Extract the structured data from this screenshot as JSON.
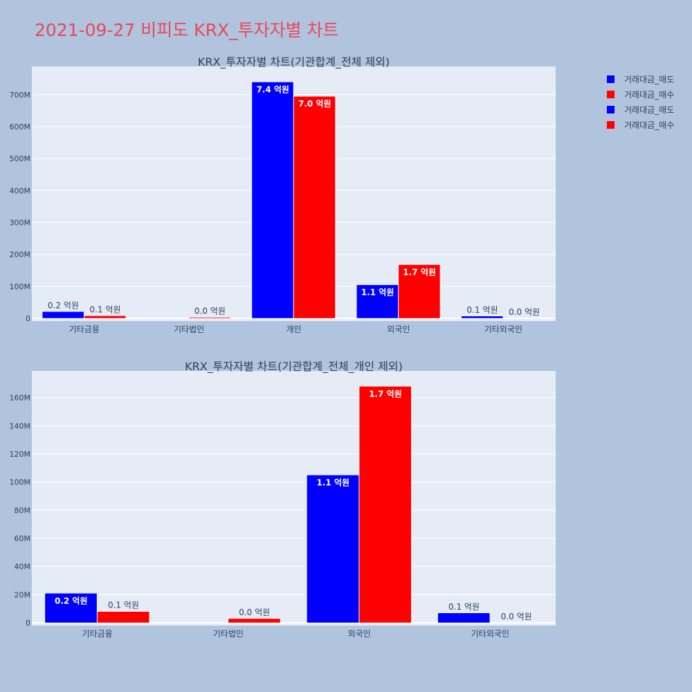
{
  "title": "2021-09-27 비피도 KRX_투자자별 차트",
  "colors": {
    "sell": "#0000ff",
    "buy": "#ff0000",
    "plot_bg": "#e5ecf6",
    "page_bg": "#b0c4de",
    "title": "#e8495a"
  },
  "legend": [
    {
      "name": "거래대금_매도",
      "color": "#0000ff"
    },
    {
      "name": "거래대금_매수",
      "color": "#ff0000"
    },
    {
      "name": "거래대금_매도",
      "color": "#0000ff"
    },
    {
      "name": "거래대금_매수",
      "color": "#ff0000"
    }
  ],
  "chart_data": [
    {
      "type": "bar",
      "title": "KRX_투자자별 차트(기관합계_전체 제외)",
      "categories": [
        "기타금융",
        "기타법인",
        "개인",
        "외국인",
        "기타외국인"
      ],
      "series": [
        {
          "name": "거래대금_매도",
          "values": [
            21000000,
            0,
            740000000,
            105000000,
            7000000
          ],
          "labels": [
            "0.2 억원",
            "",
            "7.4 억원",
            "1.1 억원",
            "0.1 억원"
          ]
        },
        {
          "name": "거래대금_매수",
          "values": [
            8000000,
            3000000,
            695000000,
            168000000,
            0
          ],
          "labels": [
            "0.1 억원",
            "0.0 억원",
            "7.0 억원",
            "1.7 억원",
            "0.0 억원"
          ]
        }
      ],
      "yticks": [
        0,
        100000000,
        200000000,
        300000000,
        400000000,
        500000000,
        600000000,
        700000000
      ],
      "ytick_labels": [
        "0",
        "100M",
        "200M",
        "300M",
        "400M",
        "500M",
        "600M",
        "700M"
      ],
      "ylim": [
        0,
        780000000
      ],
      "grid": true,
      "legend_position": "top-right"
    },
    {
      "type": "bar",
      "title": "KRX_투자자별 차트(기관합계_전체_개인 제외)",
      "categories": [
        "기타금융",
        "기타법인",
        "외국인",
        "기타외국인"
      ],
      "series": [
        {
          "name": "거래대금_매도",
          "values": [
            21000000,
            0,
            105000000,
            7000000
          ],
          "labels": [
            "0.2 억원",
            "",
            "1.1 억원",
            "0.1 억원"
          ]
        },
        {
          "name": "거래대금_매수",
          "values": [
            8000000,
            3000000,
            168000000,
            0
          ],
          "labels": [
            "0.1 억원",
            "0.0 억원",
            "1.7 억원",
            "0.0 억원"
          ]
        }
      ],
      "yticks": [
        0,
        20000000,
        40000000,
        60000000,
        80000000,
        100000000,
        120000000,
        140000000,
        160000000
      ],
      "ytick_labels": [
        "0",
        "20M",
        "40M",
        "60M",
        "80M",
        "100M",
        "120M",
        "140M",
        "160M"
      ],
      "ylim": [
        0,
        177000000
      ],
      "grid": true,
      "legend_position": "top-right"
    }
  ]
}
